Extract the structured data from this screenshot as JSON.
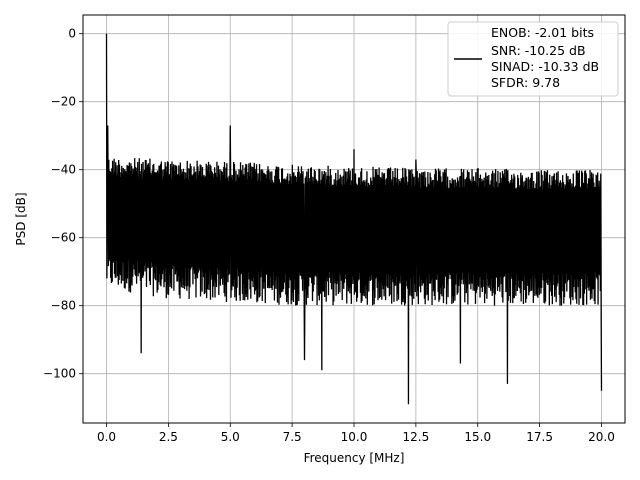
{
  "chart_data": {
    "type": "line",
    "title": "",
    "xlabel": "Frequency [MHz]",
    "ylabel": "PSD [dB]",
    "xlim": [
      -0.95,
      20.95
    ],
    "ylim": [
      -114.5,
      5.5
    ],
    "xticks": [
      0.0,
      2.5,
      5.0,
      7.5,
      10.0,
      12.5,
      15.0,
      17.5,
      20.0
    ],
    "xtick_labels": [
      "0.0",
      "2.5",
      "5.0",
      "7.5",
      "10.0",
      "12.5",
      "15.0",
      "17.5",
      "20.0"
    ],
    "yticks": [
      0,
      -20,
      -40,
      -60,
      -80,
      -100
    ],
    "ytick_labels": [
      "0",
      "−20",
      "−40",
      "−60",
      "−80",
      "−100"
    ],
    "grid": true,
    "legend_position": "top-right",
    "line_color": "#000000",
    "series": [
      {
        "name": "ENOB: -2.01 bits\nSNR: -10.25 dB\nSINAD: -10.33 dB\nSFDR: 9.78",
        "legend_lines": [
          "ENOB: -2.01 bits",
          "SNR: -10.25 dB",
          "SINAD: -10.33 dB",
          "SFDR: 9.78"
        ],
        "x_range": [
          0.0,
          20.0
        ],
        "noise_upper_envelope": [
          [
            0.0,
            -36
          ],
          [
            2.5,
            -37
          ],
          [
            5.0,
            -37.5
          ],
          [
            7.5,
            -38.5
          ],
          [
            10.0,
            -39
          ],
          [
            12.5,
            -39.5
          ],
          [
            15.0,
            -39.5
          ],
          [
            17.5,
            -40
          ],
          [
            20.0,
            -40
          ]
        ],
        "noise_lower_envelope": [
          [
            0.0,
            -75
          ],
          [
            2.5,
            -78
          ],
          [
            5.0,
            -79
          ],
          [
            7.5,
            -80
          ],
          [
            10.0,
            -80
          ],
          [
            12.5,
            -80
          ],
          [
            15.0,
            -80
          ],
          [
            17.5,
            -80
          ],
          [
            20.0,
            -80
          ]
        ],
        "spikes": [
          {
            "x": 0.0,
            "y": 0
          },
          {
            "x": 0.05,
            "y": -27
          },
          {
            "x": 5.0,
            "y": -27
          },
          {
            "x": 10.0,
            "y": -34
          },
          {
            "x": 12.5,
            "y": -37
          },
          {
            "x": 20.0,
            "y": -37
          }
        ],
        "dips": [
          {
            "x": 1.4,
            "y": -94
          },
          {
            "x": 8.0,
            "y": -96
          },
          {
            "x": 8.7,
            "y": -99
          },
          {
            "x": 12.2,
            "y": -109
          },
          {
            "x": 14.3,
            "y": -97
          },
          {
            "x": 16.2,
            "y": -103
          },
          {
            "x": 20.0,
            "y": -105
          }
        ]
      }
    ]
  }
}
